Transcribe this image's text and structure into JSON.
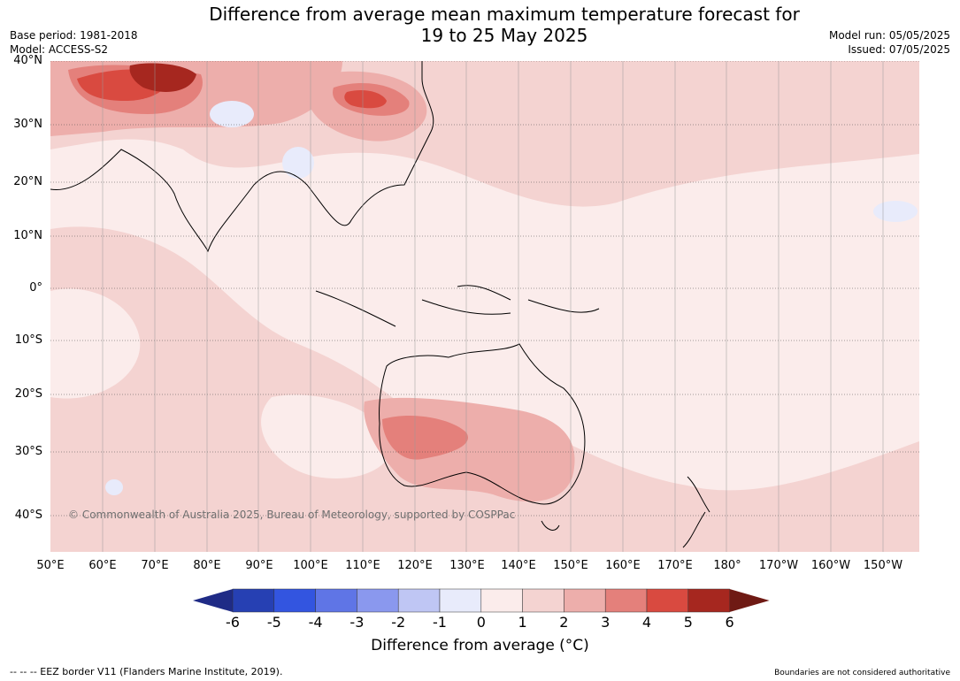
{
  "title_line1": "Difference from average mean maximum temperature forecast for",
  "title_line2": "19 to 25 May 2025",
  "meta_left": [
    "Base period: 1981-2018",
    "Model: ACCESS-S2"
  ],
  "meta_right": [
    "Model run: 05/05/2025",
    "Issued: 07/05/2025"
  ],
  "lat_labels": [
    "40°N",
    "30°N",
    "20°N",
    "10°N",
    "0°",
    "10°S",
    "20°S",
    "30°S",
    "40°S"
  ],
  "lon_labels": [
    "50°E",
    "60°E",
    "70°E",
    "80°E",
    "90°E",
    "100°E",
    "110°E",
    "120°E",
    "130°E",
    "140°E",
    "150°E",
    "160°E",
    "170°E",
    "180°",
    "170°W",
    "160°W",
    "150°W"
  ],
  "copyright": "© Commonwealth of Australia 2025, Bureau of Meteorology, supported by COSPPac",
  "colorbar": {
    "ticks": [
      "-6",
      "-5",
      "-4",
      "-3",
      "-2",
      "-1",
      "0",
      "1",
      "2",
      "3",
      "4",
      "5",
      "6"
    ],
    "colors": [
      "#1f2b86",
      "#2640b3",
      "#3355e0",
      "#5f75e6",
      "#8a98ee",
      "#bfc6f4",
      "#e8ebfb",
      "#fbeceb",
      "#f4d3d1",
      "#edaeab",
      "#e4807b",
      "#d94a40",
      "#a6271f",
      "#6f1a14"
    ],
    "label": "Difference from average (°C)"
  },
  "footer_left": "--  --  -- EEZ border V11 (Flanders Marine Institute, 2019).",
  "footer_right": "Boundaries are not considered authoritative"
}
